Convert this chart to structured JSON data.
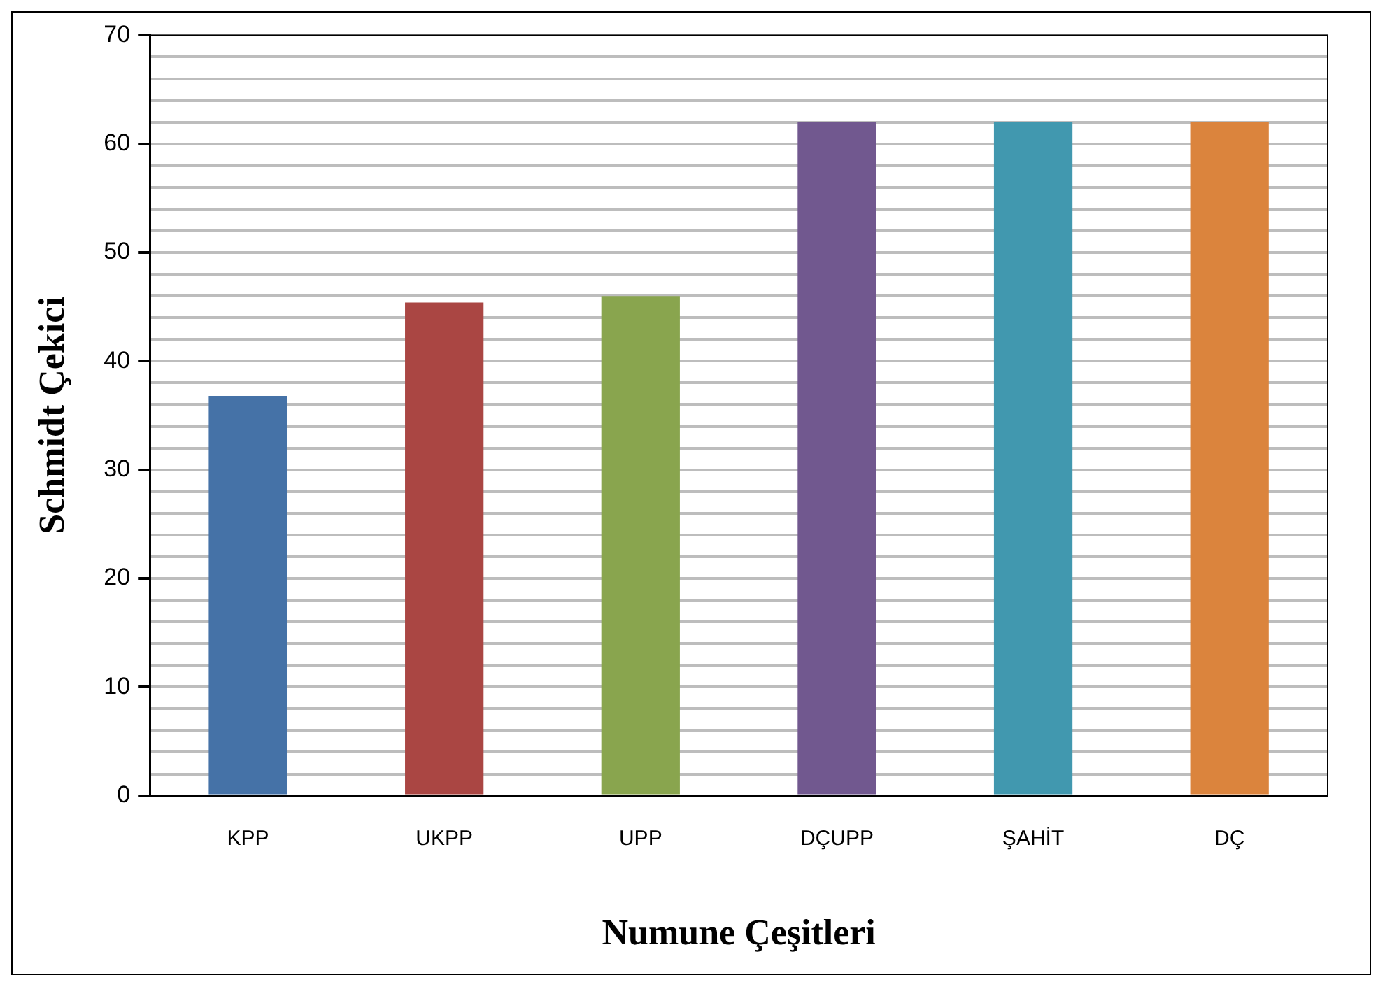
{
  "chart_data": {
    "type": "bar",
    "xlabel": "Numune Çeşitleri",
    "ylabel": "Schmidt Çekici",
    "categories": [
      "KPP",
      "UKPP",
      "UPP",
      "DÇUPP",
      "ŞAHİT",
      "DÇ"
    ],
    "values": [
      36.8,
      45.4,
      46.0,
      62.0,
      62.0,
      62.0
    ],
    "colors": [
      "#4572a7",
      "#aa4643",
      "#89a54e",
      "#71588f",
      "#4198af",
      "#db843d"
    ],
    "ylim": [
      0,
      70
    ],
    "yticks": [
      0,
      {
        "value": 2,
        "label": null
      },
      {
        "value": 4,
        "label": null
      },
      {
        "value": 6,
        "label": null
      },
      {
        "value": 8,
        "label": null
      },
      10,
      {
        "value": 12,
        "label": null
      },
      {
        "value": 14,
        "label": null
      },
      {
        "value": 16,
        "label": null
      },
      {
        "value": 18,
        "label": null
      },
      20,
      {
        "value": 22,
        "label": null
      },
      {
        "value": 24,
        "label": null
      },
      {
        "value": 26,
        "label": null
      },
      {
        "value": 28,
        "label": null
      },
      30,
      {
        "value": 32,
        "label": null
      },
      {
        "value": 34,
        "label": null
      },
      {
        "value": 36,
        "label": null
      },
      {
        "value": 38,
        "label": null
      },
      40,
      {
        "value": 42,
        "label": null
      },
      {
        "value": 44,
        "label": null
      },
      {
        "value": 46,
        "label": null
      },
      {
        "value": 48,
        "label": null
      },
      50,
      {
        "value": 52,
        "label": null
      },
      {
        "value": 54,
        "label": null
      },
      {
        "value": 56,
        "label": null
      },
      {
        "value": 58,
        "label": null
      },
      60,
      {
        "value": 62,
        "label": null
      },
      {
        "value": 64,
        "label": null
      },
      {
        "value": 66,
        "label": null
      },
      {
        "value": 68,
        "label": null
      },
      70
    ],
    "grid": "y"
  }
}
